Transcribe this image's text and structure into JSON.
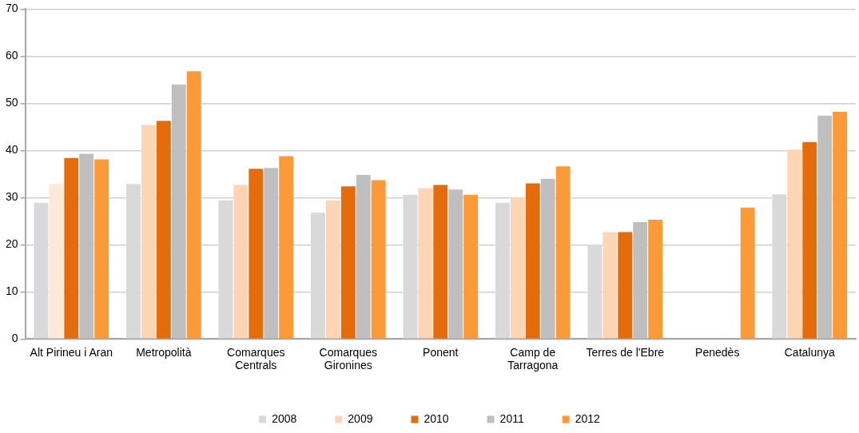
{
  "chart_data": {
    "type": "bar",
    "categories": [
      "Alt Pirineu i Aran",
      "Metropolità",
      "Comarques Centrals",
      "Comarques Gironines",
      "Ponent",
      "Camp de Tarragona",
      "Terres de l'Ebre",
      "Penedès",
      "Catalunya"
    ],
    "series": [
      {
        "name": "2008",
        "color": "#d9d9d9",
        "values": [
          29.0,
          33.0,
          29.5,
          26.9,
          30.7,
          29.0,
          20.0,
          null,
          30.8
        ]
      },
      {
        "name": "2009",
        "color": "#fcd5b5",
        "colors": [
          "#fde9d9",
          "#fcd5b5",
          "#fcd5b5",
          "#fcd5b5",
          "#fcd5b5",
          "#fcd5b5",
          "#fcd5b5",
          "#fcd5b5",
          "#fcd5b5"
        ],
        "values": [
          33.0,
          45.5,
          32.8,
          29.5,
          32.0,
          30.2,
          22.8,
          null,
          40.3
        ]
      },
      {
        "name": "2010",
        "color": "#e46c0a",
        "values": [
          38.5,
          46.4,
          36.2,
          32.5,
          32.8,
          33.1,
          22.8,
          null,
          41.9
        ]
      },
      {
        "name": "2011",
        "color": "#bfbfbf",
        "values": [
          39.4,
          54.1,
          36.4,
          34.9,
          31.8,
          34.1,
          24.9,
          null,
          47.5
        ]
      },
      {
        "name": "2012",
        "color": "#fd9a38",
        "values": [
          38.2,
          56.9,
          38.9,
          33.8,
          30.7,
          36.7,
          25.4,
          28.0,
          48.3
        ]
      }
    ],
    "ylim": [
      0,
      70
    ],
    "yticks": [
      0,
      10,
      20,
      30,
      40,
      50,
      60,
      70
    ],
    "grid": "y",
    "legend": "bottom"
  }
}
